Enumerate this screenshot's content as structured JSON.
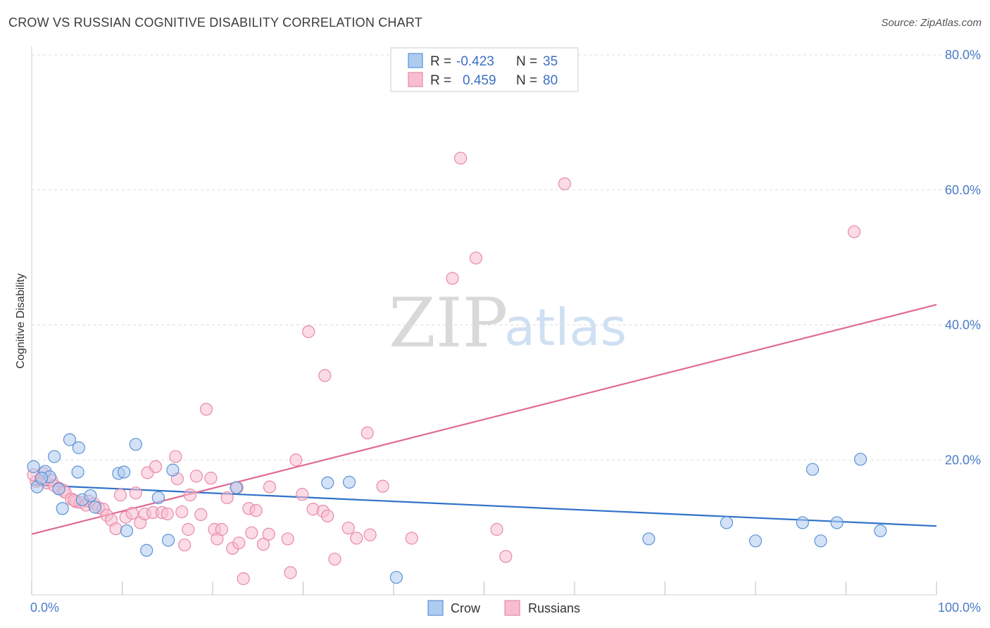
{
  "title": "CROW VS RUSSIAN COGNITIVE DISABILITY CORRELATION CHART",
  "source": "Source: ZipAtlas.com",
  "watermark": {
    "zip": "ZIP",
    "atlas": "atlas"
  },
  "colors": {
    "crow_fill": "#aecbf0",
    "crow_stroke": "#5b93d6",
    "crow_line": "#2f72c9",
    "rus_fill": "#f7bdd0",
    "rus_stroke": "#e88aa8",
    "rus_line": "#e06a95",
    "tick_label": "#4a7cc7",
    "grid": "#dddddd"
  },
  "legend": {
    "rows": [
      {
        "r_label": "R =",
        "r_value": "-0.423",
        "n_label": "N =",
        "n_value": "35"
      },
      {
        "r_label": "R =",
        "r_value": "0.459",
        "n_label": "N =",
        "n_value": "80"
      }
    ]
  },
  "bottom_legend": [
    "Crow",
    "Russians"
  ],
  "chart_data": {
    "type": "scatter",
    "title": "CROW VS RUSSIAN COGNITIVE DISABILITY CORRELATION CHART",
    "xlabel": "",
    "ylabel": "Cognitive Disability",
    "xlim": [
      0,
      100
    ],
    "ylim": [
      0,
      80
    ],
    "x_tick_labels": [
      "0.0%",
      "100.0%"
    ],
    "y_ticks": [
      20,
      40,
      60,
      80
    ],
    "y_tick_labels": [
      "20.0%",
      "40.0%",
      "60.0%",
      "80.0%"
    ],
    "grid": "horizontal dashed",
    "legend_position": "top-center",
    "series": [
      {
        "name": "Crow",
        "r": -0.423,
        "n": 35,
        "trend": [
          [
            0,
            16.3
          ],
          [
            100,
            10.2
          ]
        ],
        "points": [
          [
            0.2,
            19.0
          ],
          [
            0.6,
            16.0
          ],
          [
            1.5,
            18.3
          ],
          [
            2.0,
            17.5
          ],
          [
            2.5,
            20.5
          ],
          [
            3.0,
            15.7
          ],
          [
            3.4,
            12.8
          ],
          [
            4.2,
            23.0
          ],
          [
            5.1,
            18.2
          ],
          [
            5.2,
            21.8
          ],
          [
            5.6,
            14.1
          ],
          [
            6.5,
            14.7
          ],
          [
            7.0,
            13.0
          ],
          [
            9.6,
            18.0
          ],
          [
            10.2,
            18.2
          ],
          [
            10.5,
            9.5
          ],
          [
            11.5,
            22.3
          ],
          [
            12.7,
            6.6
          ],
          [
            14.0,
            14.4
          ],
          [
            15.1,
            8.1
          ],
          [
            15.6,
            18.5
          ],
          [
            22.6,
            15.9
          ],
          [
            32.7,
            16.6
          ],
          [
            35.1,
            16.7
          ],
          [
            40.3,
            2.6
          ],
          [
            68.2,
            8.3
          ],
          [
            76.8,
            10.7
          ],
          [
            80.0,
            8.0
          ],
          [
            85.2,
            10.7
          ],
          [
            86.3,
            18.6
          ],
          [
            87.2,
            8.0
          ],
          [
            89.0,
            10.7
          ],
          [
            91.6,
            20.1
          ],
          [
            93.8,
            9.5
          ],
          [
            1.1,
            17.3
          ]
        ]
      },
      {
        "name": "Russians",
        "r": 0.459,
        "n": 80,
        "trend": [
          [
            0,
            9.0
          ],
          [
            100,
            43.0
          ]
        ],
        "points": [
          [
            0.5,
            16.8
          ],
          [
            1.0,
            17.2
          ],
          [
            1.3,
            18.0
          ],
          [
            1.7,
            16.6
          ],
          [
            2.2,
            17.0
          ],
          [
            2.5,
            16.2
          ],
          [
            3.0,
            15.8
          ],
          [
            3.5,
            15.5
          ],
          [
            3.7,
            15.2
          ],
          [
            4.4,
            14.2
          ],
          [
            4.9,
            13.8
          ],
          [
            5.4,
            13.7
          ],
          [
            6.0,
            13.3
          ],
          [
            6.3,
            13.9
          ],
          [
            6.9,
            13.5
          ],
          [
            7.4,
            12.9
          ],
          [
            7.9,
            12.7
          ],
          [
            8.3,
            11.8
          ],
          [
            8.8,
            11.1
          ],
          [
            9.3,
            9.8
          ],
          [
            9.8,
            14.8
          ],
          [
            10.4,
            11.5
          ],
          [
            11.1,
            12.1
          ],
          [
            11.5,
            15.1
          ],
          [
            12.0,
            10.7
          ],
          [
            12.5,
            12.0
          ],
          [
            12.8,
            18.1
          ],
          [
            13.4,
            12.2
          ],
          [
            13.7,
            19.0
          ],
          [
            14.4,
            12.2
          ],
          [
            15.0,
            12.0
          ],
          [
            15.9,
            20.5
          ],
          [
            16.1,
            17.2
          ],
          [
            16.6,
            12.3
          ],
          [
            16.9,
            7.4
          ],
          [
            17.3,
            9.7
          ],
          [
            17.5,
            14.8
          ],
          [
            18.2,
            17.6
          ],
          [
            18.7,
            11.9
          ],
          [
            19.3,
            27.5
          ],
          [
            19.8,
            17.3
          ],
          [
            20.2,
            9.7
          ],
          [
            20.5,
            8.3
          ],
          [
            21.0,
            9.7
          ],
          [
            21.6,
            14.4
          ],
          [
            22.2,
            6.9
          ],
          [
            22.7,
            15.9
          ],
          [
            22.9,
            7.7
          ],
          [
            23.4,
            2.4
          ],
          [
            24.0,
            12.8
          ],
          [
            24.3,
            9.2
          ],
          [
            24.8,
            12.5
          ],
          [
            25.6,
            7.5
          ],
          [
            26.2,
            9.0
          ],
          [
            26.3,
            16.0
          ],
          [
            28.3,
            8.3
          ],
          [
            28.6,
            3.3
          ],
          [
            29.2,
            20.0
          ],
          [
            29.9,
            14.9
          ],
          [
            30.6,
            39.0
          ],
          [
            31.1,
            12.7
          ],
          [
            32.2,
            12.4
          ],
          [
            32.4,
            32.5
          ],
          [
            32.7,
            11.7
          ],
          [
            33.5,
            5.3
          ],
          [
            35.0,
            9.9
          ],
          [
            35.9,
            8.4
          ],
          [
            37.1,
            24.0
          ],
          [
            37.4,
            8.9
          ],
          [
            38.8,
            16.1
          ],
          [
            42.0,
            8.4
          ],
          [
            46.5,
            46.9
          ],
          [
            47.4,
            64.7
          ],
          [
            49.1,
            49.9
          ],
          [
            51.4,
            9.7
          ],
          [
            52.4,
            5.7
          ],
          [
            58.9,
            60.9
          ],
          [
            90.9,
            53.8
          ],
          [
            0.2,
            17.8
          ],
          [
            4.7,
            14.0
          ]
        ]
      }
    ]
  }
}
